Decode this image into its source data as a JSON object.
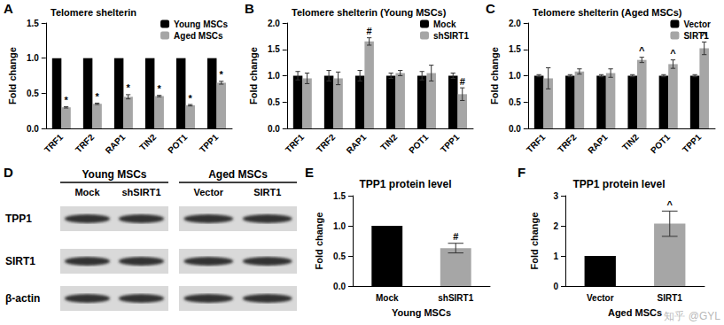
{
  "chart_data": [
    {
      "panel": "A",
      "type": "bar",
      "title": "Telomere shelterin",
      "y_label": "Fold change",
      "categories": [
        "TRF1",
        "TRF2",
        "RAP1",
        "TIN2",
        "POT1",
        "TPP1"
      ],
      "series": [
        {
          "name": "Young MSCs",
          "color": "#000000",
          "values": [
            1.0,
            1.0,
            1.0,
            1.0,
            1.0,
            1.0
          ],
          "errors": [
            0,
            0,
            0,
            0,
            0,
            0
          ],
          "annotations": [
            null,
            null,
            null,
            null,
            null,
            null
          ]
        },
        {
          "name": "Aged MSCs",
          "color": "#a6a6a6",
          "values": [
            0.3,
            0.35,
            0.45,
            0.46,
            0.33,
            0.65
          ],
          "errors": [
            0.01,
            0.01,
            0.03,
            0.01,
            0.01,
            0.02
          ],
          "annotations": [
            "*",
            "*",
            "*",
            "*",
            "*",
            "*"
          ]
        }
      ],
      "ylim": [
        0,
        1.5
      ],
      "yticks": [
        {
          "value": 0,
          "label": "0.0"
        },
        0.5,
        {
          "value": 1,
          "label": "1.0"
        },
        1.5
      ],
      "legend": "top-right"
    },
    {
      "panel": "B",
      "type": "bar",
      "title": "Telomere shelterin (Young MSCs)",
      "y_label": "Fold change",
      "categories": [
        "TRF1",
        "TRF2",
        "RAP1",
        "TIN2",
        "POT1",
        "TPP1"
      ],
      "series": [
        {
          "name": "Mock",
          "color": "#000000",
          "values": [
            1.0,
            1.0,
            1.0,
            1.0,
            1.0,
            1.0
          ],
          "errors": [
            0.08,
            0.1,
            0.1,
            0.05,
            0.08,
            0.05
          ],
          "annotations": [
            null,
            null,
            null,
            null,
            null,
            null
          ]
        },
        {
          "name": "shSIRT1",
          "color": "#a6a6a6",
          "values": [
            0.95,
            0.95,
            1.65,
            1.05,
            1.05,
            0.65
          ],
          "errors": [
            0.1,
            0.12,
            0.07,
            0.05,
            0.15,
            0.12
          ],
          "annotations": [
            null,
            null,
            "#",
            null,
            null,
            "#"
          ]
        }
      ],
      "ylim": [
        0,
        2
      ],
      "yticks": [
        {
          "value": 0,
          "label": "0.0"
        },
        0.5,
        {
          "value": 1,
          "label": "1.0"
        },
        1.5,
        {
          "value": 2,
          "label": "2.0"
        }
      ],
      "legend": "top-right"
    },
    {
      "panel": "C",
      "type": "bar",
      "title": "Telomere shelterin (Aged MSCs)",
      "y_label": "Fold change",
      "categories": [
        "TRF1",
        "TRF2",
        "RAP1",
        "TIN2",
        "POT1",
        "TPP1"
      ],
      "series": [
        {
          "name": "Vector",
          "color": "#000000",
          "values": [
            1.0,
            1.0,
            1.0,
            1.0,
            1.0,
            1.0
          ],
          "errors": [
            0.02,
            0.02,
            0.02,
            0.02,
            0.02,
            0.02
          ],
          "annotations": [
            null,
            null,
            null,
            null,
            null,
            null
          ]
        },
        {
          "name": "SIRT1",
          "color": "#a6a6a6",
          "values": [
            0.95,
            1.08,
            1.05,
            1.3,
            1.22,
            1.52
          ],
          "errors": [
            0.2,
            0.05,
            0.08,
            0.05,
            0.08,
            0.12
          ],
          "annotations": [
            null,
            null,
            null,
            "^",
            "^",
            "^"
          ]
        }
      ],
      "ylim": [
        0,
        2
      ],
      "yticks": [
        {
          "value": 0,
          "label": "0.0"
        },
        0.5,
        {
          "value": 1,
          "label": "1.0"
        },
        1.5,
        {
          "value": 2,
          "label": "2.0"
        }
      ],
      "legend": "top-right"
    },
    {
      "panel": "E",
      "type": "bar",
      "title": "TPP1 protein level",
      "y_label": "Fold change",
      "group_label": "Young MSCs",
      "categories": [
        "Mock",
        "shSIRT1"
      ],
      "values": [
        1.0,
        0.63
      ],
      "errors": [
        0,
        0.08
      ],
      "annotations": [
        null,
        "#"
      ],
      "colors": [
        "#000000",
        "#a6a6a6"
      ],
      "ylim": [
        0,
        1.5
      ],
      "yticks": [
        {
          "value": 0,
          "label": "0.0"
        },
        0.5,
        {
          "value": 1,
          "label": "1.0"
        },
        1.5
      ]
    },
    {
      "panel": "F",
      "type": "bar",
      "title": "TPP1 protein level",
      "y_label": "Fold change",
      "group_label": "Aged MSCs",
      "categories": [
        "Vector",
        "SIRT1"
      ],
      "values": [
        1.0,
        2.07
      ],
      "errors": [
        0,
        0.42
      ],
      "annotations": [
        null,
        "^"
      ],
      "colors": [
        "#000000",
        "#a6a6a6"
      ],
      "ylim": [
        0,
        3
      ],
      "yticks": [
        0,
        1,
        2,
        3
      ],
      "watermark": "知乎 @GYL"
    }
  ],
  "blot": {
    "panel": "D",
    "groups": [
      {
        "label": "Young MSCs",
        "lanes": [
          "Mock",
          "shSIRT1"
        ]
      },
      {
        "label": "Aged MSCs",
        "lanes": [
          "Vector",
          "SIRT1"
        ]
      }
    ],
    "rows": [
      "TPP1",
      "SIRT1",
      "β-actin"
    ]
  }
}
